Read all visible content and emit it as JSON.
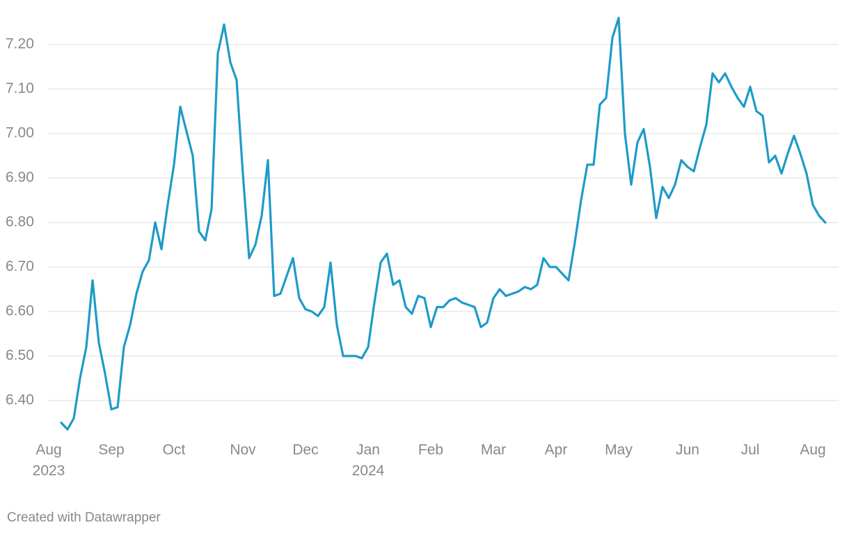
{
  "chart_data": {
    "type": "line",
    "categories": [
      "Aug",
      null,
      null,
      null,
      null,
      null,
      null,
      null,
      null,
      null,
      "Sep",
      null,
      null,
      null,
      null,
      null,
      null,
      null,
      null,
      null,
      "Oct",
      null,
      null,
      null,
      null,
      null,
      null,
      null,
      null,
      null,
      null,
      "Nov",
      null,
      null,
      null,
      null,
      null,
      null,
      null,
      null,
      null,
      "Dec",
      null,
      null,
      null,
      null,
      null,
      null,
      null,
      null,
      null,
      "Jan",
      null,
      null,
      null,
      null,
      null,
      null,
      null,
      null,
      null,
      "Feb",
      null,
      null,
      null,
      null,
      null,
      null,
      null,
      null,
      null,
      "Mar",
      null,
      null,
      null,
      null,
      null,
      null,
      null,
      null,
      null,
      "Apr",
      null,
      null,
      null,
      null,
      null,
      null,
      null,
      null,
      null,
      "May",
      null,
      null,
      null,
      null,
      null,
      null,
      null,
      null,
      null,
      null,
      "Jun",
      null,
      null,
      null,
      null,
      null,
      null,
      null,
      null,
      null,
      "Jul",
      null,
      null,
      null,
      null,
      null,
      null,
      null,
      null,
      null,
      "Aug",
      null,
      null
    ],
    "year_labels": [
      "2023",
      null,
      null,
      null,
      null,
      null,
      null,
      null,
      null,
      null,
      null,
      null,
      null,
      null,
      null,
      null,
      null,
      null,
      null,
      null,
      null,
      null,
      null,
      null,
      null,
      null,
      null,
      null,
      null,
      null,
      null,
      null,
      null,
      null,
      null,
      null,
      null,
      null,
      null,
      null,
      null,
      null,
      null,
      null,
      null,
      null,
      null,
      null,
      null,
      null,
      null,
      "2024",
      null,
      null,
      null,
      null,
      null,
      null,
      null,
      null,
      null,
      null,
      null,
      null,
      null,
      null,
      null,
      null,
      null,
      null,
      null,
      null,
      null,
      null,
      null,
      null,
      null,
      null,
      null,
      null,
      null,
      null,
      null,
      null,
      null,
      null,
      null,
      null,
      null,
      null,
      null,
      null,
      null,
      null,
      null,
      null,
      null,
      null,
      null,
      null,
      null,
      null,
      null,
      null,
      null,
      null,
      null,
      null,
      null,
      null,
      null,
      null,
      null,
      null,
      null,
      null,
      null,
      null,
      null,
      null,
      null,
      null,
      null,
      null,
      null
    ],
    "series": [
      {
        "color": "#1d9bc8",
        "values": [
          null,
          null,
          6.35,
          6.335,
          6.36,
          6.45,
          6.52,
          6.67,
          6.53,
          6.46,
          6.38,
          6.385,
          6.52,
          6.57,
          6.64,
          6.69,
          6.715,
          6.8,
          6.74,
          6.84,
          6.93,
          7.06,
          7.005,
          6.95,
          6.78,
          6.76,
          6.83,
          7.18,
          7.245,
          7.16,
          7.12,
          6.91,
          6.72,
          6.75,
          6.815,
          6.94,
          6.635,
          6.64,
          6.68,
          6.72,
          6.63,
          6.605,
          6.6,
          6.59,
          6.61,
          6.71,
          6.57,
          6.5,
          6.5,
          6.5,
          6.495,
          6.52,
          6.62,
          6.71,
          6.73,
          6.66,
          6.67,
          6.61,
          6.595,
          6.635,
          6.63,
          6.565,
          6.61,
          6.61,
          6.625,
          6.63,
          6.62,
          6.615,
          6.61,
          6.565,
          6.575,
          6.63,
          6.65,
          6.635,
          6.64,
          6.645,
          6.655,
          6.65,
          6.66,
          6.72,
          6.7,
          6.7,
          6.685,
          6.67,
          6.755,
          6.85,
          6.93,
          6.93,
          7.065,
          7.08,
          7.215,
          7.26,
          7.0,
          6.885,
          6.98,
          7.01,
          6.925,
          6.81,
          6.88,
          6.855,
          6.885,
          6.94,
          6.925,
          6.915,
          6.97,
          7.02,
          7.135,
          7.115,
          7.135,
          7.105,
          7.08,
          7.06,
          7.105,
          7.05,
          7.04,
          6.935,
          6.95,
          6.91,
          6.955,
          6.995,
          6.955,
          6.91,
          6.84,
          6.815,
          6.8
        ]
      }
    ],
    "ylim": [
      6.33,
      7.28
    ],
    "yticks": [
      {
        "value": 6.4,
        "label": "6.40"
      },
      {
        "value": 6.5,
        "label": "6.50"
      },
      {
        "value": 6.6,
        "label": "6.60"
      },
      {
        "value": 6.7,
        "label": "6.70"
      },
      {
        "value": 6.8,
        "label": "6.80"
      },
      {
        "value": 6.9,
        "label": "6.90"
      },
      {
        "value": 7.0,
        "label": "7.00"
      },
      {
        "value": 7.1,
        "label": "7.10"
      },
      {
        "value": 7.2,
        "label": "7.20"
      }
    ],
    "grid": true,
    "footer": "Created with Datawrapper"
  }
}
